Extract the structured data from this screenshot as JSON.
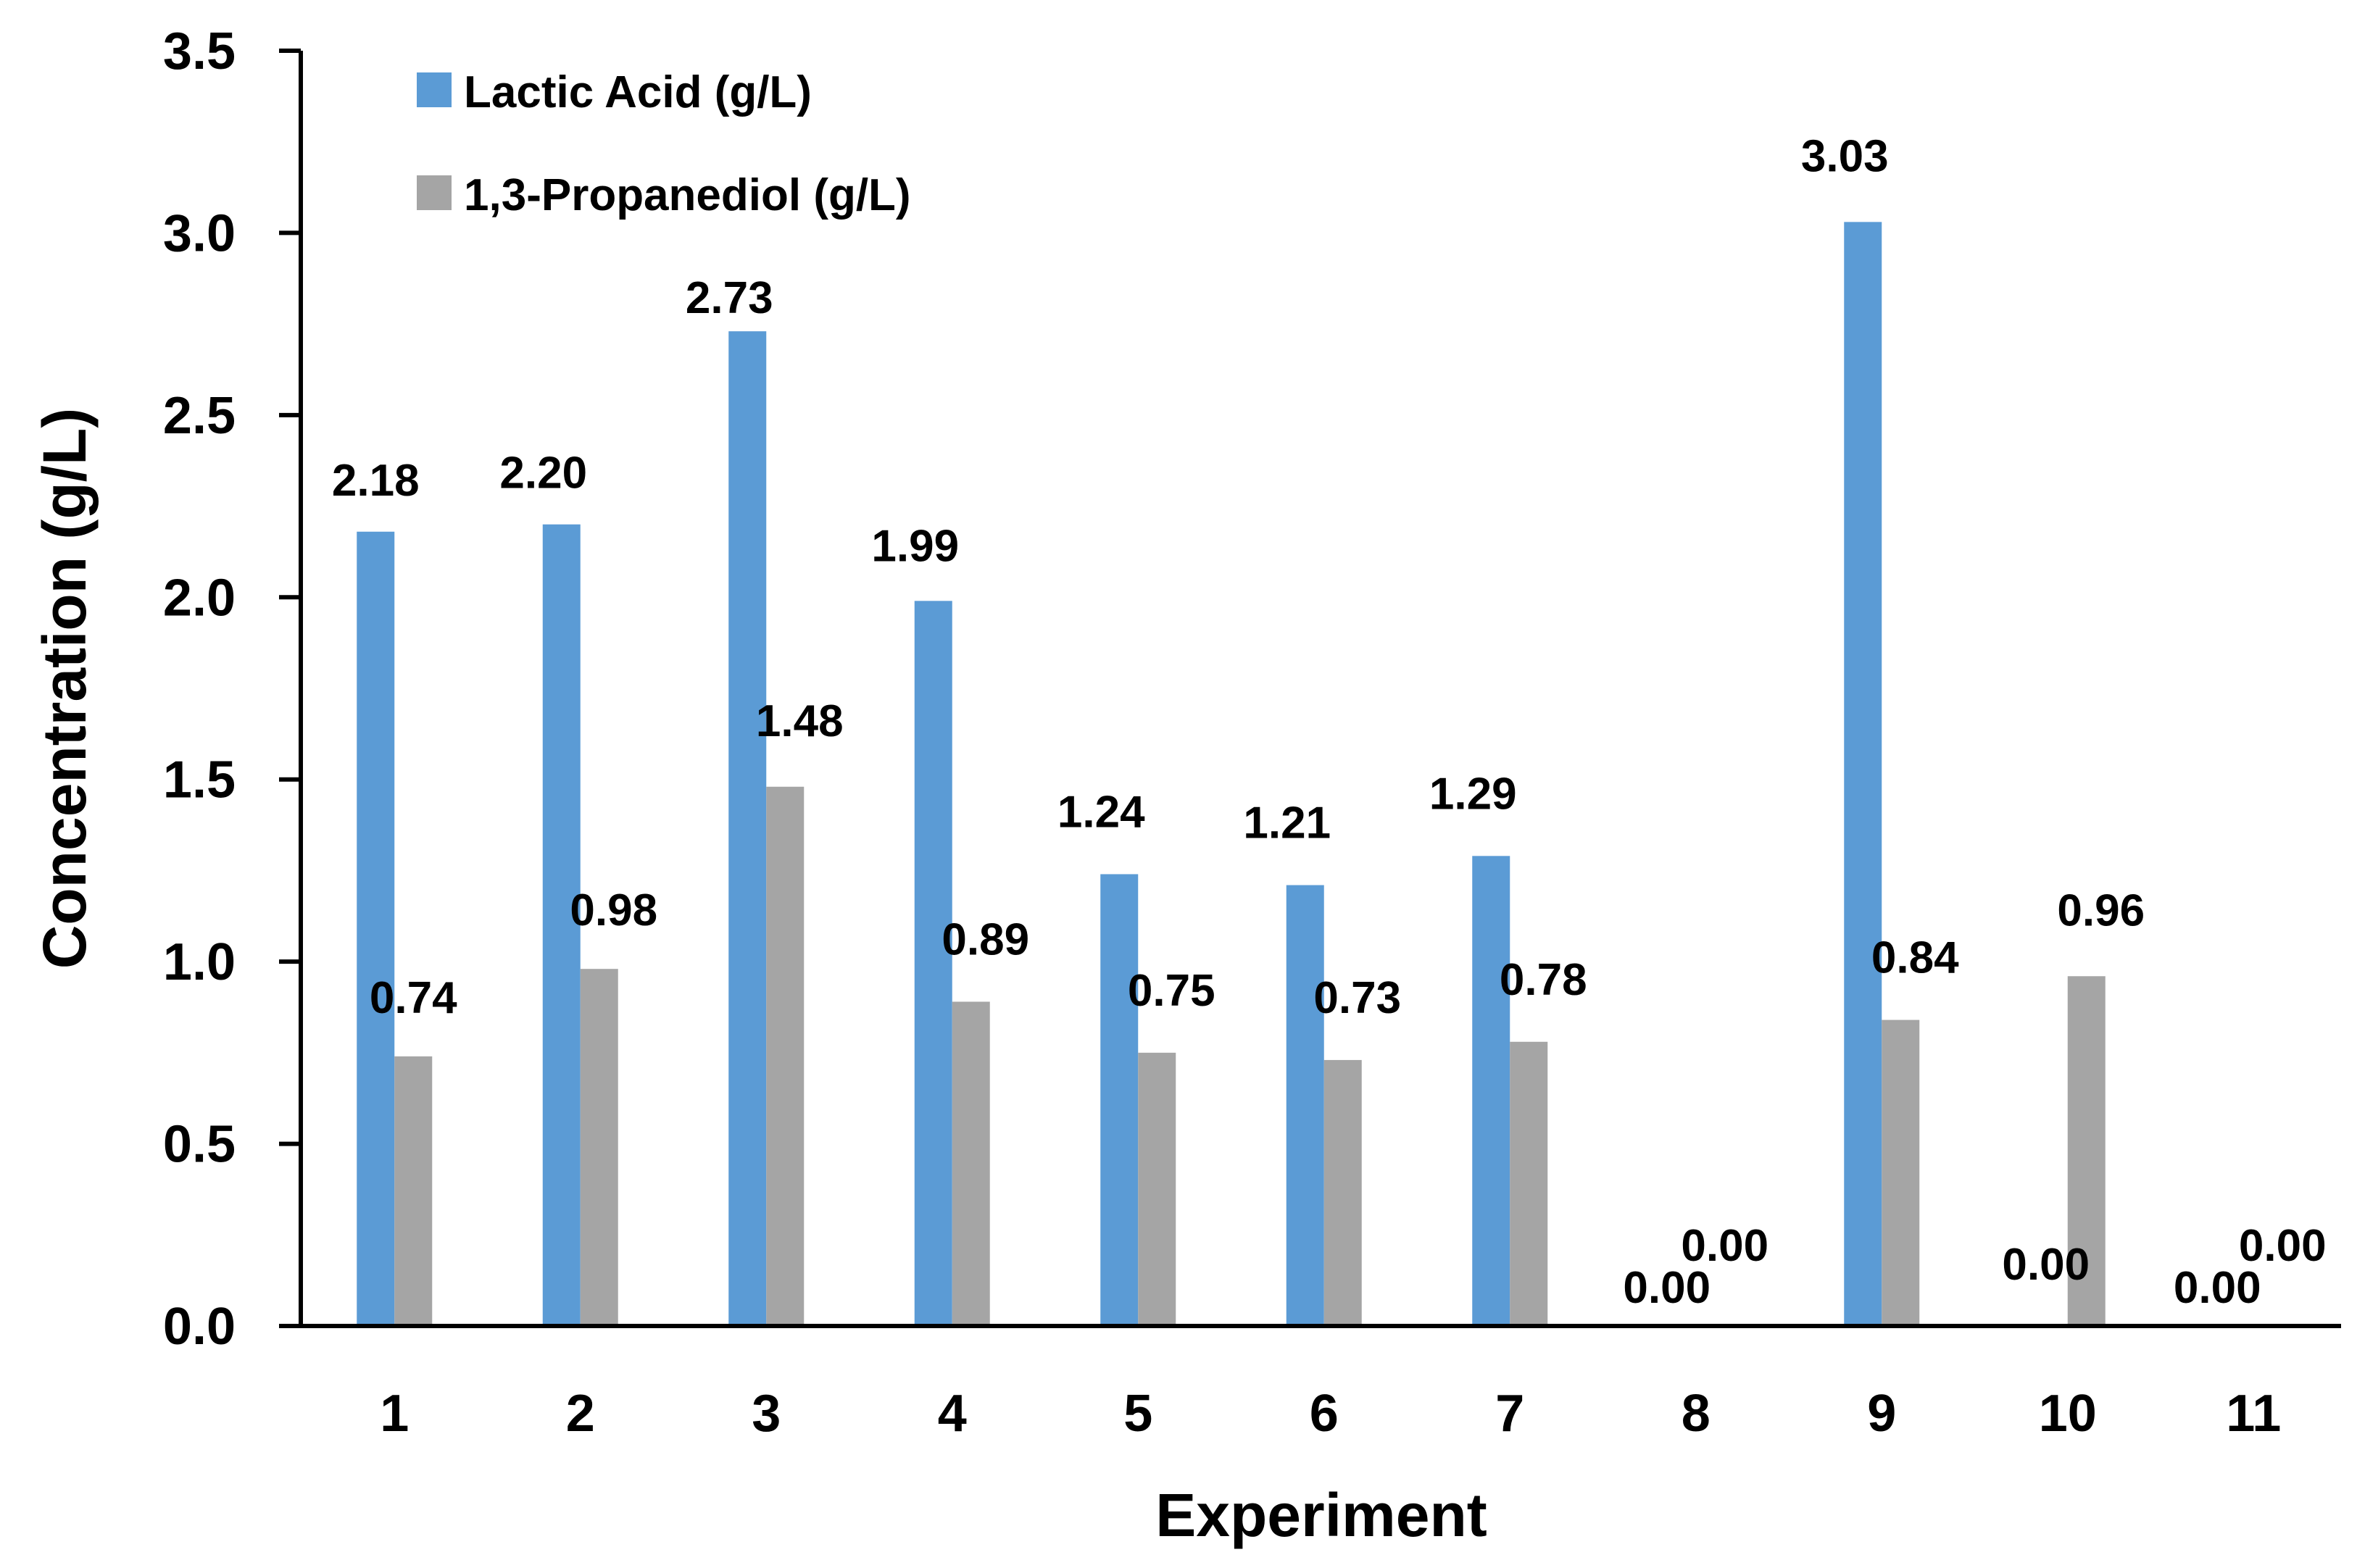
{
  "chart_data": {
    "type": "bar",
    "title": "",
    "xlabel": "Experiment",
    "ylabel": "Concentration (g/L)",
    "ylim": [
      0,
      3.5
    ],
    "yticks": [
      "0.0",
      "0.5",
      "1.0",
      "1.5",
      "2.0",
      "2.5",
      "3.0",
      "3.5"
    ],
    "ytick_values": [
      0,
      0.5,
      1.0,
      1.5,
      2.0,
      2.5,
      3.0,
      3.5
    ],
    "categories": [
      "1",
      "2",
      "3",
      "4",
      "5",
      "6",
      "7",
      "8",
      "9",
      "10",
      "11"
    ],
    "grid": false,
    "legend_position": "top-left",
    "series": [
      {
        "name": "Lactic Acid (g/L)",
        "color": "#5B9BD5",
        "values": [
          2.18,
          2.2,
          2.73,
          1.99,
          1.24,
          1.21,
          1.29,
          0.0,
          3.03,
          0.0,
          0.0
        ],
        "labels": [
          "2.18",
          "2.20",
          "2.73",
          "1.99",
          "1.24",
          "1.21",
          "1.29",
          "0.00",
          "3.03",
          "0.00",
          "0.00"
        ]
      },
      {
        "name": "1,3-Propanediol (g/L)",
        "color": "#A5A5A5",
        "values": [
          0.74,
          0.98,
          1.48,
          0.89,
          0.75,
          0.73,
          0.78,
          0.0,
          0.84,
          0.96,
          0.0
        ],
        "labels": [
          "0.74",
          "0.98",
          "1.48",
          "0.89",
          "0.75",
          "0.73",
          "0.78",
          "0.00",
          "0.84",
          "0.96",
          "0.00"
        ]
      }
    ]
  }
}
